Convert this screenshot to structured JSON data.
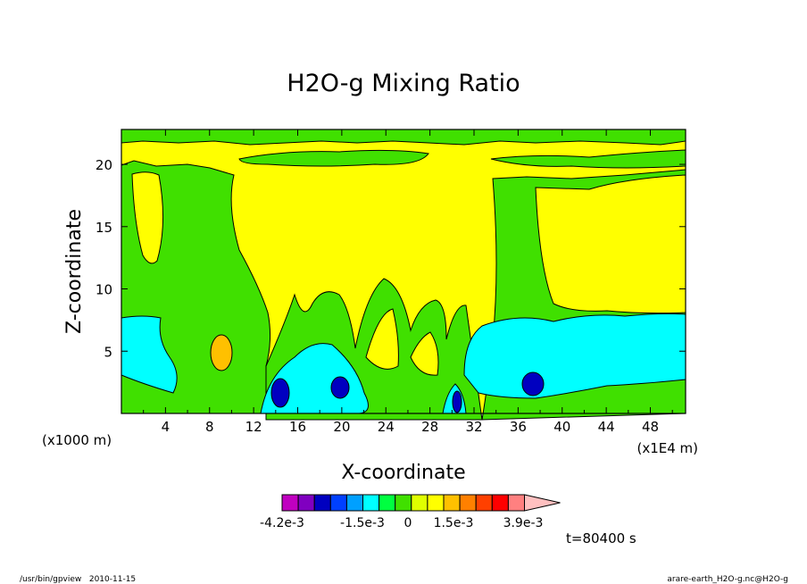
{
  "chart_data": {
    "type": "contour",
    "title": "H2O-g Mixing Ratio",
    "xlabel": "X-coordinate",
    "ylabel": "Z-coordinate",
    "x_unit_left": "(x1000 m)",
    "x_unit_right": "(x1E4 m)",
    "xlim": [
      0,
      51.2
    ],
    "ylim": [
      0,
      22.8
    ],
    "x_ticks": [
      "4",
      "8",
      "12",
      "16",
      "20",
      "24",
      "28",
      "32",
      "36",
      "40",
      "44",
      "48"
    ],
    "y_ticks": [
      "5",
      "10",
      "15",
      "20"
    ],
    "time_label": "t=80400 s",
    "colorbar": {
      "labels": [
        "-4.2e-3",
        "-1.5e-3",
        "0",
        "1.5e-3",
        "3.9e-3"
      ],
      "colors": [
        "#c000c0",
        "#8000c0",
        "#0000c0",
        "#0040ff",
        "#00a0ff",
        "#00ffff",
        "#00ff40",
        "#40e000",
        "#e0ff00",
        "#ffff00",
        "#ffc000",
        "#ff8000",
        "#ff4000",
        "#ff0000",
        "#ff8080",
        "#ffc0c0"
      ]
    }
  },
  "footer": {
    "left": "/usr/bin/gpview   2010-11-15",
    "right": "arare-earth_H2O-g.nc@H2O-g"
  }
}
